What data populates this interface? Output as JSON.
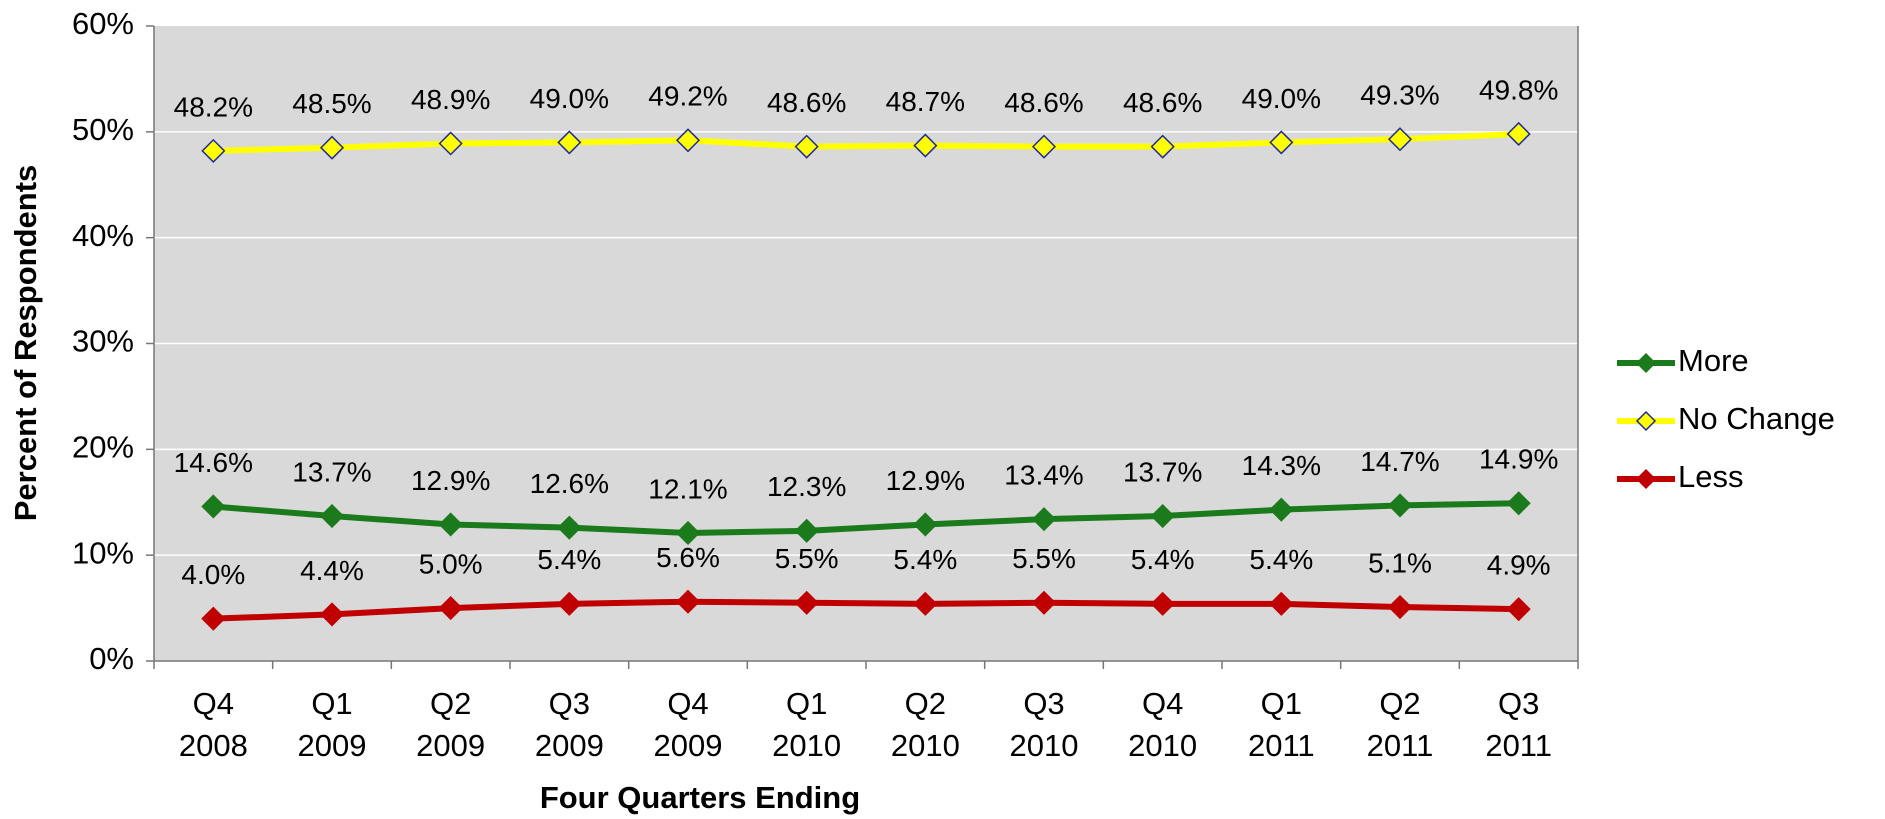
{
  "chart_data": {
    "type": "line",
    "x_label": "Four Quarters Ending",
    "y_label": "Percent of Respondents",
    "categories": [
      "Q4 2008",
      "Q1 2009",
      "Q2 2009",
      "Q3 2009",
      "Q4 2009",
      "Q1 2010",
      "Q2 2010",
      "Q3 2010",
      "Q4 2010",
      "Q1 2011",
      "Q2 2011",
      "Q3 2011"
    ],
    "series": [
      {
        "name": "More",
        "color": "#1b7a1b",
        "marker_fill": "#1b7a1b",
        "marker_stroke": "#1b7a1b",
        "values": [
          14.6,
          13.7,
          12.9,
          12.6,
          12.1,
          12.3,
          12.9,
          13.4,
          13.7,
          14.3,
          14.7,
          14.9
        ],
        "value_labels": [
          "14.6%",
          "13.7%",
          "12.9%",
          "12.6%",
          "12.1%",
          "12.3%",
          "12.9%",
          "13.4%",
          "13.7%",
          "14.3%",
          "14.7%",
          "14.9%"
        ]
      },
      {
        "name": "No Change",
        "color": "#ffff00",
        "marker_fill": "#ffff00",
        "marker_stroke": "#1f2a9a",
        "values": [
          48.2,
          48.5,
          48.9,
          49.0,
          49.2,
          48.6,
          48.7,
          48.6,
          48.6,
          49.0,
          49.3,
          49.8
        ],
        "value_labels": [
          "48.2%",
          "48.5%",
          "48.9%",
          "49.0%",
          "49.2%",
          "48.6%",
          "48.7%",
          "48.6%",
          "48.6%",
          "49.0%",
          "49.3%",
          "49.8%"
        ]
      },
      {
        "name": "Less",
        "color": "#c00000",
        "marker_fill": "#c00000",
        "marker_stroke": "#c00000",
        "values": [
          4.0,
          4.4,
          5.0,
          5.4,
          5.6,
          5.5,
          5.4,
          5.5,
          5.4,
          5.4,
          5.1,
          4.9
        ],
        "value_labels": [
          "4.0%",
          "4.4%",
          "5.0%",
          "5.4%",
          "5.6%",
          "5.5%",
          "5.4%",
          "5.5%",
          "5.4%",
          "5.4%",
          "5.1%",
          "4.9%"
        ]
      }
    ],
    "ylim": [
      0,
      60
    ],
    "yticks": [
      {
        "value": 0,
        "label": "0%"
      },
      {
        "value": 10,
        "label": "10%"
      },
      {
        "value": 20,
        "label": "20%"
      },
      {
        "value": 30,
        "label": "30%"
      },
      {
        "value": 40,
        "label": "40%"
      },
      {
        "value": 50,
        "label": "50%"
      },
      {
        "value": 60,
        "label": "60%"
      }
    ],
    "grid": true,
    "legend": "right"
  }
}
